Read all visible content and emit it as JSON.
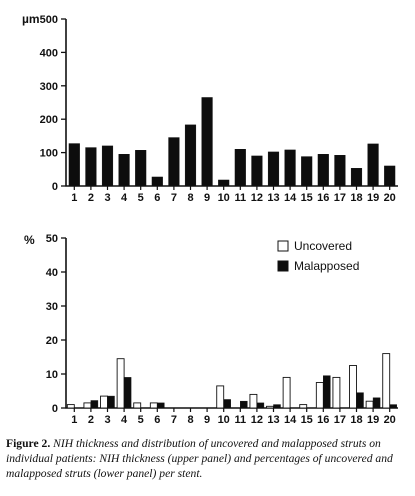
{
  "caption": {
    "label": "Figure 2.",
    "text": "NIH thickness and distribution of uncovered and malapposed struts on individual patients: NIH thickness (upper panel) and percentages of uncovered and malapposed struts (lower panel) per stent."
  },
  "colors": {
    "bar_fill": "#0d0d0d",
    "open_fill": "#ffffff",
    "axis": "#111111"
  },
  "chart_data": [
    {
      "type": "bar",
      "unit_label": "µm",
      "categories": [
        "1",
        "2",
        "3",
        "4",
        "5",
        "6",
        "7",
        "8",
        "9",
        "10",
        "11",
        "12",
        "13",
        "14",
        "15",
        "16",
        "17",
        "18",
        "19",
        "20"
      ],
      "series": [
        {
          "values": [
            127,
            115,
            120,
            95,
            107,
            27,
            145,
            183,
            265,
            18,
            110,
            90,
            102,
            108,
            88,
            95,
            92,
            53,
            126,
            60
          ]
        }
      ],
      "ylim": [
        0,
        500
      ],
      "yticks": [
        0,
        100,
        200,
        300,
        400,
        500
      ],
      "grid": false
    },
    {
      "type": "bar",
      "unit_label": "%",
      "categories": [
        "1",
        "2",
        "3",
        "4",
        "5",
        "6",
        "7",
        "8",
        "9",
        "10",
        "11",
        "12",
        "13",
        "14",
        "15",
        "16",
        "17",
        "18",
        "19",
        "20"
      ],
      "series": [
        {
          "name": "Uncovered",
          "style": "open",
          "values": [
            1,
            1.5,
            3.5,
            14.5,
            1.5,
            1.5,
            0,
            0,
            0,
            6.5,
            0,
            4,
            0.5,
            9,
            1,
            7.5,
            9,
            12.5,
            2,
            16
          ]
        },
        {
          "name": "Malapposed",
          "style": "filled",
          "values": [
            0,
            2.2,
            3.5,
            9,
            0,
            1.5,
            0,
            0,
            0,
            2.5,
            2,
            1.5,
            1,
            0,
            0,
            9.5,
            0,
            4.5,
            3,
            1
          ]
        }
      ],
      "ylim": [
        0,
        50
      ],
      "yticks": [
        0,
        10,
        20,
        30,
        40,
        50
      ],
      "legend_position": "top-right",
      "grid": false
    }
  ]
}
